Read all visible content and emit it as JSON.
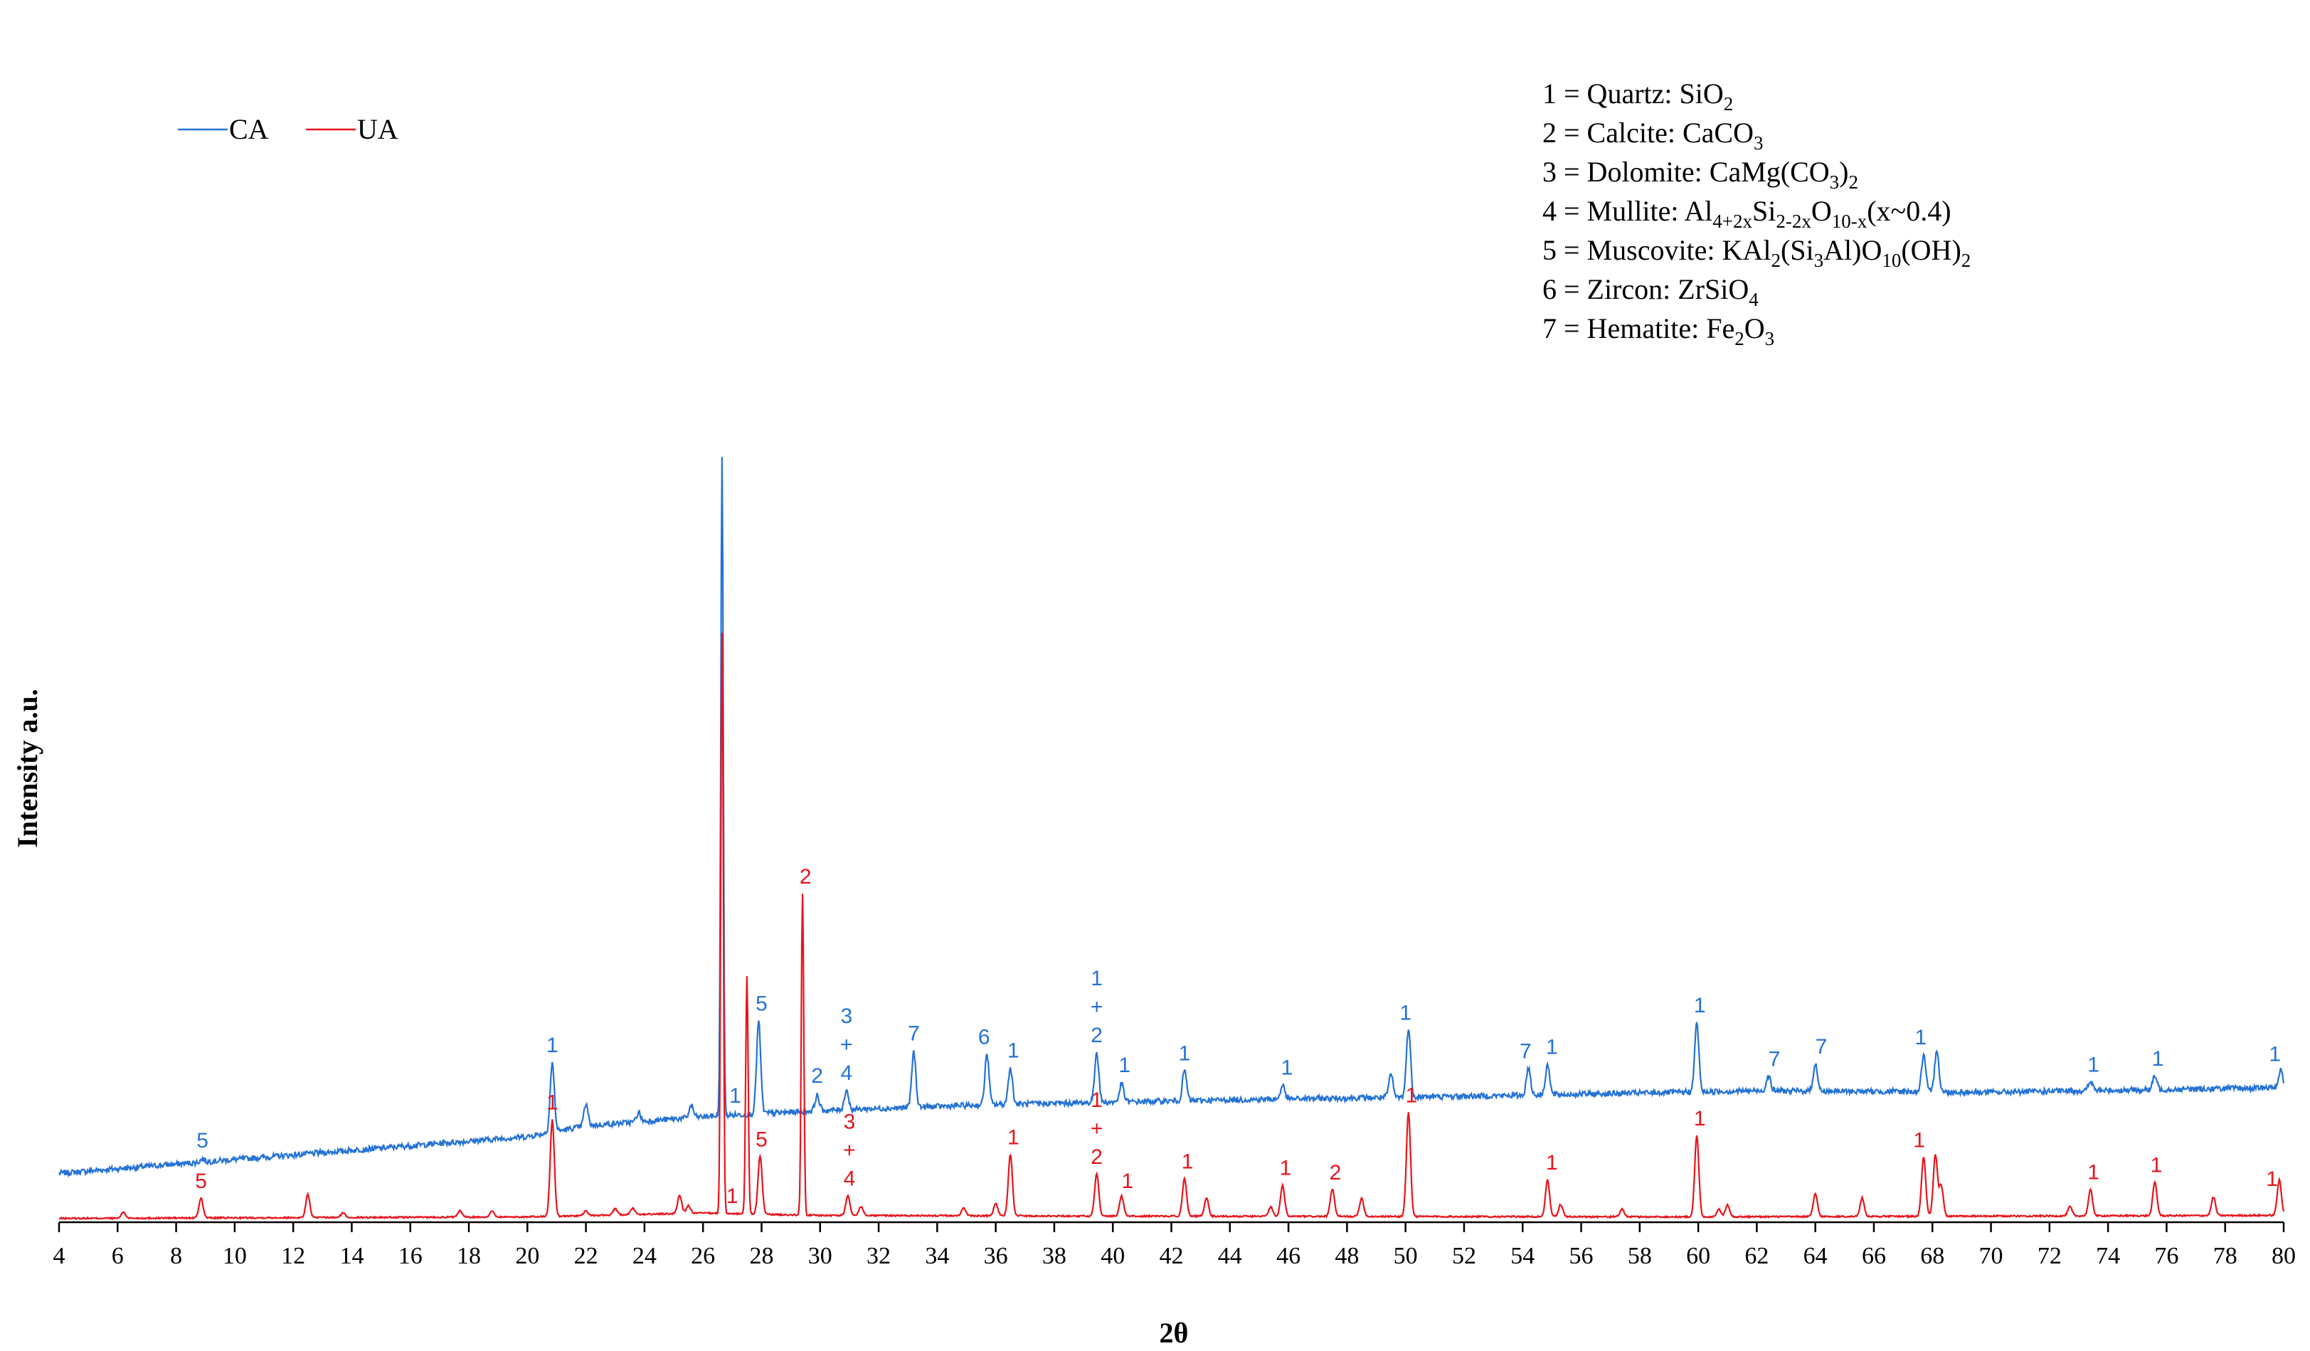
{
  "chart_data": {
    "type": "line",
    "xlabel": "2θ",
    "ylabel": "Intensity a.u.",
    "xlim": [
      4,
      80
    ],
    "x_ticks": [
      "4",
      "6",
      "8",
      "10",
      "12",
      "14",
      "16",
      "18",
      "20",
      "22",
      "24",
      "26",
      "28",
      "30",
      "32",
      "34",
      "36",
      "38",
      "40",
      "42",
      "44",
      "46",
      "48",
      "50",
      "52",
      "54",
      "56",
      "58",
      "60",
      "62",
      "64",
      "66",
      "68",
      "70",
      "72",
      "74",
      "76",
      "78",
      "80"
    ],
    "legend": [
      {
        "name": "CA",
        "color": "#2472d6"
      },
      {
        "name": "UA",
        "color": "#e8141c"
      }
    ],
    "series": [
      {
        "name": "CA",
        "color": "#2472d6",
        "baseline": [
          [
            4,
            3.2
          ],
          [
            20,
            5.6
          ],
          [
            22,
            6.3
          ],
          [
            26,
            6.9
          ],
          [
            30,
            7.3
          ],
          [
            36,
            7.7
          ],
          [
            44,
            8.0
          ],
          [
            54,
            8.3
          ],
          [
            62,
            8.6
          ],
          [
            70,
            8.5
          ],
          [
            80,
            8.8
          ]
        ],
        "peaks": [
          {
            "x": 8.9,
            "h": 0.2
          },
          {
            "x": 20.85,
            "h": 4.5
          },
          {
            "x": 22.0,
            "h": 1.4
          },
          {
            "x": 23.8,
            "h": 0.6
          },
          {
            "x": 25.6,
            "h": 0.8
          },
          {
            "x": 26.65,
            "h": 43.0
          },
          {
            "x": 27.9,
            "h": 6.0
          },
          {
            "x": 29.9,
            "h": 1.0
          },
          {
            "x": 30.9,
            "h": 1.3
          },
          {
            "x": 33.2,
            "h": 3.6
          },
          {
            "x": 35.7,
            "h": 3.3
          },
          {
            "x": 36.5,
            "h": 2.4
          },
          {
            "x": 39.45,
            "h": 3.3
          },
          {
            "x": 40.3,
            "h": 1.2
          },
          {
            "x": 42.45,
            "h": 2.0
          },
          {
            "x": 45.8,
            "h": 0.9
          },
          {
            "x": 49.5,
            "h": 1.5
          },
          {
            "x": 50.1,
            "h": 4.5
          },
          {
            "x": 54.2,
            "h": 1.8
          },
          {
            "x": 54.85,
            "h": 2.0
          },
          {
            "x": 59.95,
            "h": 4.5
          },
          {
            "x": 62.4,
            "h": 1.0
          },
          {
            "x": 64.0,
            "h": 1.8
          },
          {
            "x": 67.7,
            "h": 2.4
          },
          {
            "x": 68.15,
            "h": 2.8
          },
          {
            "x": 73.4,
            "h": 0.6
          },
          {
            "x": 75.6,
            "h": 0.9
          },
          {
            "x": 79.9,
            "h": 1.2
          }
        ],
        "labels": [
          {
            "x": 8.9,
            "text": "5"
          },
          {
            "x": 20.85,
            "text": "1"
          },
          {
            "x": 27.1,
            "text": "1"
          },
          {
            "x": 28.0,
            "text": "5"
          },
          {
            "x": 29.9,
            "text": "2"
          },
          {
            "x": 30.9,
            "text": "3\n+\n4"
          },
          {
            "x": 33.2,
            "text": "7"
          },
          {
            "x": 35.6,
            "text": "6"
          },
          {
            "x": 36.6,
            "text": "1"
          },
          {
            "x": 39.45,
            "text": "1\n+\n2"
          },
          {
            "x": 40.4,
            "text": "1"
          },
          {
            "x": 42.45,
            "text": "1"
          },
          {
            "x": 45.95,
            "text": "1"
          },
          {
            "x": 50.0,
            "text": "1"
          },
          {
            "x": 54.1,
            "text": "7"
          },
          {
            "x": 55.0,
            "text": "1"
          },
          {
            "x": 60.05,
            "text": "1"
          },
          {
            "x": 62.6,
            "text": "7"
          },
          {
            "x": 64.2,
            "text": "7"
          },
          {
            "x": 67.6,
            "text": "1"
          },
          {
            "x": 73.5,
            "text": "1"
          },
          {
            "x": 75.7,
            "text": "1"
          },
          {
            "x": 79.7,
            "text": "1"
          }
        ]
      },
      {
        "name": "UA",
        "color": "#e8141c",
        "baseline": [
          [
            4,
            0.25
          ],
          [
            20,
            0.35
          ],
          [
            26,
            0.6
          ],
          [
            30,
            0.45
          ],
          [
            40,
            0.4
          ],
          [
            60,
            0.35
          ],
          [
            80,
            0.45
          ]
        ],
        "peaks": [
          {
            "x": 6.2,
            "h": 0.4
          },
          {
            "x": 8.85,
            "h": 1.3
          },
          {
            "x": 12.5,
            "h": 1.5
          },
          {
            "x": 13.7,
            "h": 0.3
          },
          {
            "x": 17.7,
            "h": 0.4
          },
          {
            "x": 18.8,
            "h": 0.4
          },
          {
            "x": 20.85,
            "h": 6.3
          },
          {
            "x": 22.0,
            "h": 0.3
          },
          {
            "x": 23.0,
            "h": 0.4
          },
          {
            "x": 23.6,
            "h": 0.4
          },
          {
            "x": 25.2,
            "h": 1.2
          },
          {
            "x": 25.5,
            "h": 0.5
          },
          {
            "x": 26.65,
            "h": 38.0
          },
          {
            "x": 27.5,
            "h": 15.5
          },
          {
            "x": 27.95,
            "h": 3.8
          },
          {
            "x": 29.4,
            "h": 21.0
          },
          {
            "x": 30.95,
            "h": 1.3
          },
          {
            "x": 31.4,
            "h": 0.6
          },
          {
            "x": 34.9,
            "h": 0.5
          },
          {
            "x": 36.0,
            "h": 0.8
          },
          {
            "x": 36.5,
            "h": 4.0
          },
          {
            "x": 39.45,
            "h": 2.8
          },
          {
            "x": 40.3,
            "h": 1.3
          },
          {
            "x": 42.45,
            "h": 2.5
          },
          {
            "x": 43.2,
            "h": 1.2
          },
          {
            "x": 45.4,
            "h": 0.6
          },
          {
            "x": 45.8,
            "h": 2.0
          },
          {
            "x": 47.5,
            "h": 1.8
          },
          {
            "x": 48.5,
            "h": 1.2
          },
          {
            "x": 50.1,
            "h": 6.8
          },
          {
            "x": 54.85,
            "h": 2.4
          },
          {
            "x": 55.3,
            "h": 0.8
          },
          {
            "x": 57.4,
            "h": 0.5
          },
          {
            "x": 59.95,
            "h": 5.3
          },
          {
            "x": 60.7,
            "h": 0.5
          },
          {
            "x": 61.0,
            "h": 0.8
          },
          {
            "x": 64.0,
            "h": 1.5
          },
          {
            "x": 65.6,
            "h": 1.2
          },
          {
            "x": 67.7,
            "h": 3.9
          },
          {
            "x": 68.1,
            "h": 4.0
          },
          {
            "x": 68.3,
            "h": 2.0
          },
          {
            "x": 72.7,
            "h": 0.6
          },
          {
            "x": 73.4,
            "h": 1.7
          },
          {
            "x": 75.6,
            "h": 2.2
          },
          {
            "x": 77.6,
            "h": 1.2
          },
          {
            "x": 79.85,
            "h": 2.3
          }
        ],
        "labels": [
          {
            "x": 8.85,
            "text": "5"
          },
          {
            "x": 20.85,
            "text": "1"
          },
          {
            "x": 27.0,
            "text": "1"
          },
          {
            "x": 28.0,
            "text": "5"
          },
          {
            "x": 29.5,
            "text": "2"
          },
          {
            "x": 31.0,
            "text": "3\n+\n4"
          },
          {
            "x": 36.6,
            "text": "1"
          },
          {
            "x": 39.45,
            "text": "1\n+\n2"
          },
          {
            "x": 40.5,
            "text": "1"
          },
          {
            "x": 42.55,
            "text": "1"
          },
          {
            "x": 45.9,
            "text": "1"
          },
          {
            "x": 47.6,
            "text": "2"
          },
          {
            "x": 50.2,
            "text": "1"
          },
          {
            "x": 55.0,
            "text": "1"
          },
          {
            "x": 60.05,
            "text": "1"
          },
          {
            "x": 67.55,
            "text": "1"
          },
          {
            "x": 73.5,
            "text": "1"
          },
          {
            "x": 75.65,
            "text": "1"
          },
          {
            "x": 79.6,
            "text": "1"
          }
        ]
      }
    ],
    "phases": [
      {
        "num": "1",
        "name": "Quartz",
        "formula": [
          [
            "SiO",
            ""
          ],
          [
            "2",
            "sub"
          ]
        ]
      },
      {
        "num": "2",
        "name": "Calcite",
        "formula": [
          [
            "CaCO",
            ""
          ],
          [
            "3",
            "sub"
          ]
        ]
      },
      {
        "num": "3",
        "name": "Dolomite",
        "formula": [
          [
            "CaMg(CO",
            ""
          ],
          [
            "3",
            "sub"
          ],
          [
            ")",
            ""
          ],
          [
            "2",
            "sub"
          ]
        ]
      },
      {
        "num": "4",
        "name": "Mullite",
        "formula": [
          [
            "Al",
            ""
          ],
          [
            "4+2x",
            "sub"
          ],
          [
            "Si",
            ""
          ],
          [
            "2-2x",
            "sub"
          ],
          [
            "O",
            ""
          ],
          [
            "10-x",
            "sub"
          ],
          [
            "(x~0.4)",
            ""
          ]
        ]
      },
      {
        "num": "5",
        "name": "Muscovite",
        "formula": [
          [
            "KAl",
            ""
          ],
          [
            "2",
            "sub"
          ],
          [
            "(Si",
            ""
          ],
          [
            "3",
            "sub"
          ],
          [
            "Al)O",
            ""
          ],
          [
            "10",
            "sub"
          ],
          [
            "(OH)",
            ""
          ],
          [
            "2",
            "sub"
          ]
        ]
      },
      {
        "num": "6",
        "name": "Zircon",
        "formula": [
          [
            "ZrSiO",
            ""
          ],
          [
            "4",
            "sub"
          ]
        ]
      },
      {
        "num": "7",
        "name": "Hematite",
        "formula": [
          [
            "Fe",
            ""
          ],
          [
            "2",
            "sub"
          ],
          [
            "O",
            ""
          ],
          [
            "3",
            "sub"
          ]
        ]
      }
    ],
    "grid": false,
    "legend_position": "top-left"
  }
}
